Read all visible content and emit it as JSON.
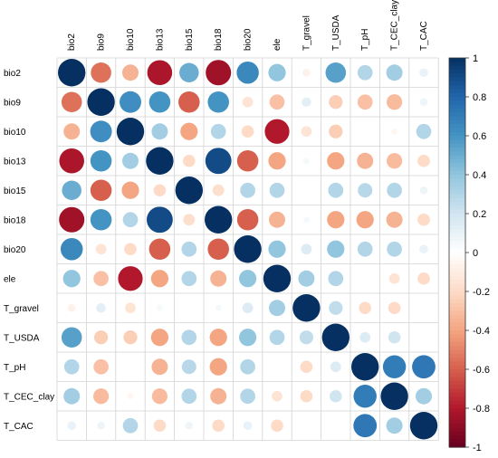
{
  "chart_data": {
    "type": "heatmap",
    "subtype": "correlation-circle-matrix",
    "title": "",
    "variables": [
      "bio2",
      "bio9",
      "bio10",
      "bio13",
      "bio15",
      "bio18",
      "bio20",
      "ele",
      "T_gravel",
      "T_USDA",
      "T_pH",
      "T_CEC_clay",
      "T_CAC"
    ],
    "matrix": [
      [
        1.0,
        -0.55,
        -0.35,
        -0.82,
        0.5,
        -0.85,
        0.65,
        0.4,
        -0.08,
        0.55,
        0.3,
        0.35,
        0.1
      ],
      [
        -0.55,
        1.0,
        0.62,
        0.6,
        -0.6,
        0.6,
        -0.15,
        -0.3,
        0.12,
        -0.25,
        -0.3,
        -0.32,
        0.08
      ],
      [
        -0.35,
        0.62,
        1.0,
        0.35,
        -0.4,
        0.3,
        -0.2,
        -0.8,
        -0.15,
        -0.25,
        0.0,
        -0.05,
        0.3
      ],
      [
        -0.82,
        0.6,
        0.35,
        1.0,
        -0.2,
        0.9,
        -0.6,
        -0.4,
        0.05,
        -0.4,
        -0.35,
        -0.32,
        -0.2
      ],
      [
        0.5,
        -0.6,
        -0.4,
        -0.2,
        1.0,
        -0.18,
        0.3,
        0.3,
        0.0,
        0.3,
        0.28,
        0.3,
        0.08
      ],
      [
        -0.85,
        0.6,
        0.3,
        0.9,
        -0.18,
        1.0,
        -0.6,
        -0.35,
        0.05,
        -0.4,
        -0.4,
        -0.35,
        -0.2
      ],
      [
        0.65,
        -0.15,
        -0.2,
        -0.6,
        0.3,
        -0.6,
        1.0,
        0.4,
        0.15,
        0.4,
        0.3,
        0.3,
        0.1
      ],
      [
        0.4,
        -0.3,
        -0.8,
        -0.4,
        0.3,
        -0.35,
        0.4,
        1.0,
        0.35,
        0.3,
        0.0,
        -0.15,
        -0.2
      ],
      [
        -0.08,
        0.12,
        -0.15,
        0.05,
        0.0,
        0.05,
        0.15,
        0.35,
        1.0,
        0.25,
        -0.2,
        -0.2,
        0.0
      ],
      [
        0.55,
        -0.25,
        -0.25,
        -0.4,
        0.3,
        -0.4,
        0.4,
        0.3,
        0.25,
        1.0,
        0.15,
        0.2,
        0.0
      ],
      [
        0.3,
        -0.3,
        0.0,
        -0.35,
        0.28,
        -0.4,
        0.3,
        0.0,
        -0.2,
        0.15,
        1.0,
        0.7,
        0.72
      ],
      [
        0.35,
        -0.32,
        -0.05,
        -0.32,
        0.3,
        -0.35,
        0.3,
        -0.15,
        -0.2,
        0.2,
        0.7,
        1.0,
        0.35
      ],
      [
        0.1,
        0.08,
        0.3,
        -0.2,
        0.08,
        -0.2,
        0.1,
        -0.2,
        0.0,
        0.0,
        0.72,
        0.35,
        1.0
      ]
    ],
    "colorbar": {
      "range": [
        -1,
        1
      ],
      "ticks": [
        -1,
        -0.8,
        -0.6,
        -0.4,
        -0.2,
        0,
        0.2,
        0.4,
        0.6,
        0.8,
        1
      ],
      "tick_labels": [
        "-1",
        "-0.8",
        "-0.6",
        "-0.4",
        "-0.2",
        "0",
        "0.2",
        "0.4",
        "0.6",
        "0.8",
        "1"
      ],
      "colors": [
        "#67001F",
        "#B2182B",
        "#D6604D",
        "#F4A582",
        "#FDDBC7",
        "#FFFFFF",
        "#D1E5F0",
        "#92C5DE",
        "#4393C3",
        "#2166AC",
        "#053061"
      ]
    },
    "grid": true
  }
}
